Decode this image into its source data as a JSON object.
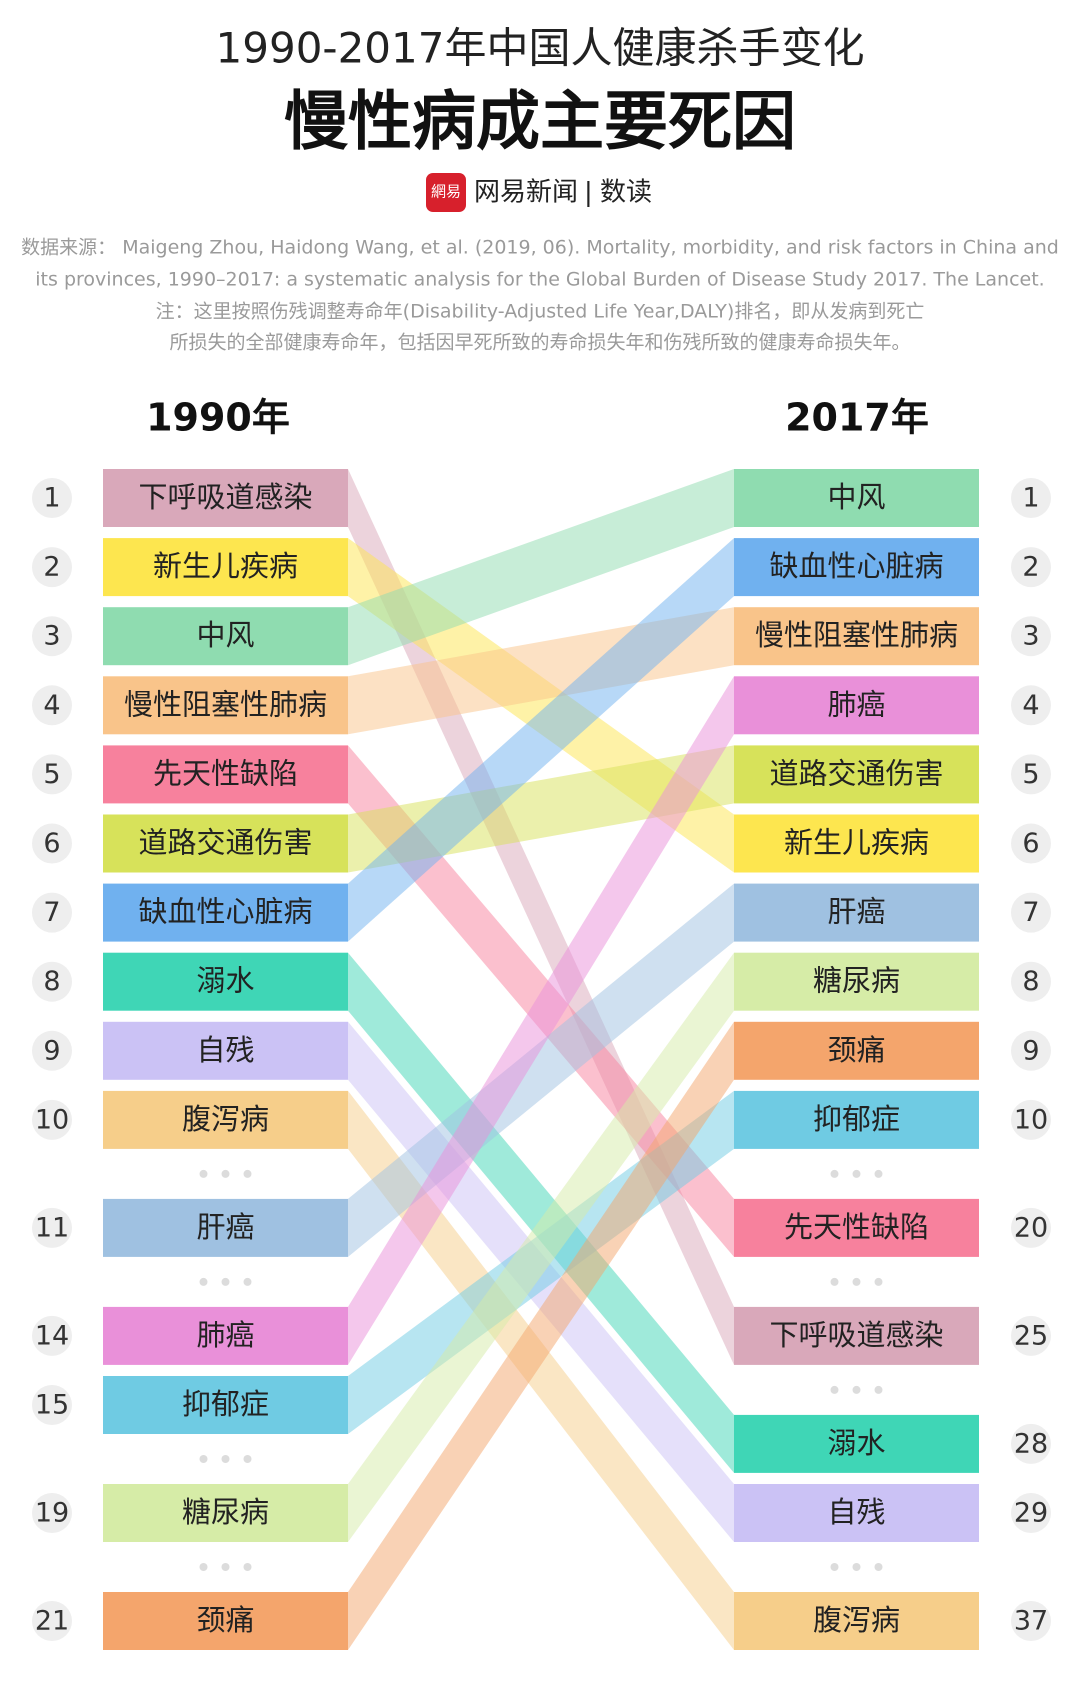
{
  "title": "1990-2017年中国人健康杀手变化",
  "subtitle": "慢性病成主要死因",
  "brand": {
    "logo_text": "網易",
    "name": "网易新闻",
    "separator": "|",
    "section": "数读"
  },
  "source": [
    "数据来源： Maigeng Zhou, Haidong Wang, et al. (2019, 06). Mortality, morbidity, and risk factors in China and",
    "its provinces, 1990–2017: a systematic analysis for the Global Burden of Disease Study 2017. The Lancet."
  ],
  "note": [
    "注：这里按照伤残调整寿命年(Disability-Adjusted Life Year,DALY)排名，即从发病到死亡",
    "所损失的全部健康寿命年，包括因早死所致的寿命损失年和伤残所致的健康寿命损失年。"
  ],
  "left": {
    "heading": "1990年",
    "items": [
      {
        "rank": 1,
        "label": "下呼吸道感染",
        "color": "#d9a8ba"
      },
      {
        "rank": 2,
        "label": "新生儿疾病",
        "color": "#fde64f"
      },
      {
        "rank": 3,
        "label": "中风",
        "color": "#8fdcb0"
      },
      {
        "rank": 4,
        "label": "慢性阻塞性肺病",
        "color": "#f9c48a"
      },
      {
        "rank": 5,
        "label": "先天性缺陷",
        "color": "#f7819d"
      },
      {
        "rank": 6,
        "label": "道路交通伤害",
        "color": "#d7e25a"
      },
      {
        "rank": 7,
        "label": "缺血性心脏病",
        "color": "#70b1ef"
      },
      {
        "rank": 8,
        "label": "溺水",
        "color": "#3fd6b6"
      },
      {
        "rank": 9,
        "label": "自残",
        "color": "#cbc2f5"
      },
      {
        "rank": 10,
        "label": "腹泻病",
        "color": "#f6ce8a"
      },
      {
        "rank": 11,
        "label": "肝癌",
        "color": "#9fc1e1"
      },
      {
        "rank": 14,
        "label": "肺癌",
        "color": "#e990d9"
      },
      {
        "rank": 15,
        "label": "抑郁症",
        "color": "#6fcbe3"
      },
      {
        "rank": 19,
        "label": "糖尿病",
        "color": "#d6eca7"
      },
      {
        "rank": 21,
        "label": "颈痛",
        "color": "#f4a56c"
      }
    ]
  },
  "right": {
    "heading": "2017年",
    "items": [
      {
        "rank": 1,
        "label": "中风",
        "color": "#8fdcb0"
      },
      {
        "rank": 2,
        "label": "缺血性心脏病",
        "color": "#70b1ef"
      },
      {
        "rank": 3,
        "label": "慢性阻塞性肺病",
        "color": "#f9c48a"
      },
      {
        "rank": 4,
        "label": "肺癌",
        "color": "#e990d9"
      },
      {
        "rank": 5,
        "label": "道路交通伤害",
        "color": "#d7e25a"
      },
      {
        "rank": 6,
        "label": "新生儿疾病",
        "color": "#fde64f"
      },
      {
        "rank": 7,
        "label": "肝癌",
        "color": "#9fc1e1"
      },
      {
        "rank": 8,
        "label": "糖尿病",
        "color": "#d6eca7"
      },
      {
        "rank": 9,
        "label": "颈痛",
        "color": "#f4a56c"
      },
      {
        "rank": 10,
        "label": "抑郁症",
        "color": "#6fcbe3"
      },
      {
        "rank": 20,
        "label": "先天性缺陷",
        "color": "#f7819d"
      },
      {
        "rank": 25,
        "label": "下呼吸道感染",
        "color": "#d9a8ba"
      },
      {
        "rank": 28,
        "label": "溺水",
        "color": "#3fd6b6"
      },
      {
        "rank": 29,
        "label": "自残",
        "color": "#cbc2f5"
      },
      {
        "rank": 37,
        "label": "腹泻病",
        "color": "#f6ce8a"
      }
    ]
  }
}
